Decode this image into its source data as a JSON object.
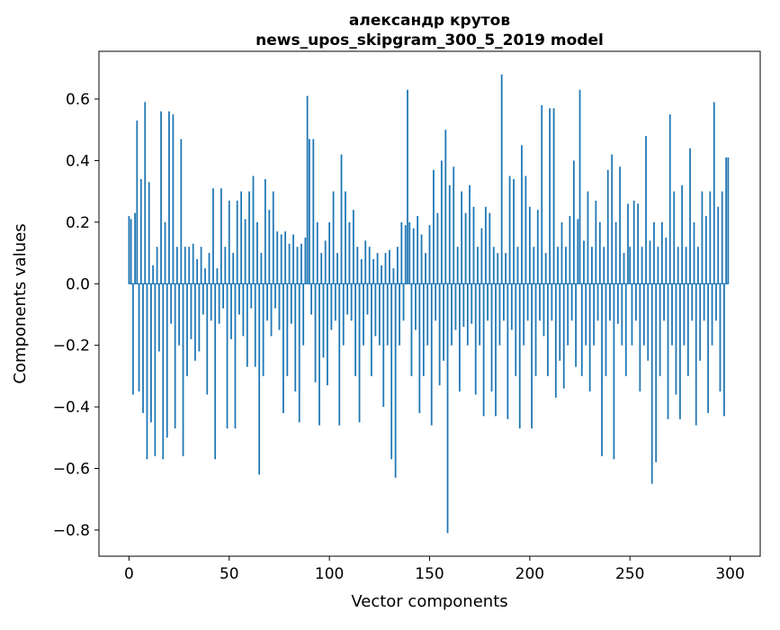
{
  "figure": {
    "background": "#ffffff"
  },
  "chart_data": {
    "type": "bar",
    "title_line1": "александр крутов",
    "title_line2": "news_upos_skipgram_300_5_2019 model",
    "title": "александр крутов\nnews_upos_skipgram_300_5_2019 model",
    "xlabel": "Vector components",
    "ylabel": "Components values",
    "bar_color": "#1f77b4",
    "n_components": 300,
    "xlim": [
      -15,
      315
    ],
    "ylim": [
      -0.885,
      0.755
    ],
    "x_ticks": [
      0,
      50,
      100,
      150,
      200,
      250,
      300
    ],
    "y_ticks": [
      -0.8,
      -0.6,
      -0.4,
      -0.2,
      0.0,
      0.2,
      0.4,
      0.6
    ],
    "grid": false,
    "legend": "none",
    "values": [
      0.22,
      0.21,
      -0.36,
      0.23,
      0.53,
      -0.35,
      0.34,
      -0.42,
      0.59,
      -0.57,
      0.33,
      -0.45,
      0.06,
      -0.56,
      0.12,
      -0.22,
      0.56,
      -0.57,
      0.2,
      -0.5,
      0.56,
      -0.13,
      0.55,
      -0.47,
      0.12,
      -0.2,
      0.47,
      -0.56,
      0.12,
      -0.3,
      0.12,
      -0.18,
      0.13,
      -0.25,
      0.08,
      -0.22,
      0.12,
      -0.1,
      0.05,
      -0.36,
      0.1,
      -0.12,
      0.31,
      -0.57,
      0.05,
      -0.13,
      0.31,
      -0.08,
      0.12,
      -0.47,
      0.27,
      -0.18,
      0.1,
      -0.47,
      0.27,
      -0.1,
      0.3,
      -0.17,
      0.21,
      -0.27,
      0.3,
      -0.08,
      0.35,
      -0.27,
      0.2,
      -0.62,
      0.1,
      -0.3,
      0.34,
      -0.12,
      0.24,
      -0.17,
      0.3,
      -0.08,
      0.17,
      -0.15,
      0.16,
      -0.42,
      0.17,
      -0.3,
      0.13,
      -0.13,
      0.16,
      -0.35,
      0.12,
      -0.45,
      0.13,
      -0.2,
      0.15,
      0.61,
      0.47,
      -0.1,
      0.47,
      -0.32,
      0.2,
      -0.46,
      0.1,
      -0.24,
      0.14,
      -0.33,
      0.2,
      -0.15,
      0.3,
      -0.12,
      0.1,
      -0.46,
      0.42,
      -0.2,
      0.3,
      -0.1,
      0.2,
      -0.12,
      0.24,
      -0.3,
      0.12,
      -0.45,
      0.08,
      -0.2,
      0.14,
      -0.1,
      0.12,
      -0.3,
      0.08,
      -0.17,
      0.1,
      -0.2,
      0.06,
      -0.4,
      0.1,
      -0.2,
      0.11,
      -0.57,
      0.05,
      -0.63,
      0.12,
      -0.2,
      0.2,
      -0.12,
      0.19,
      0.63,
      0.2,
      -0.3,
      0.18,
      -0.15,
      0.22,
      -0.42,
      0.16,
      -0.3,
      0.1,
      -0.2,
      0.19,
      -0.46,
      0.37,
      -0.12,
      0.23,
      -0.33,
      0.4,
      -0.25,
      0.5,
      -0.81,
      0.32,
      -0.2,
      0.38,
      -0.15,
      0.12,
      -0.35,
      0.3,
      -0.14,
      0.23,
      -0.2,
      0.32,
      -0.13,
      0.25,
      -0.36,
      0.12,
      -0.2,
      0.18,
      -0.43,
      0.25,
      -0.12,
      0.23,
      -0.35,
      0.12,
      -0.43,
      0.1,
      -0.2,
      0.68,
      -0.12,
      0.1,
      -0.44,
      0.35,
      -0.15,
      0.34,
      -0.3,
      0.12,
      -0.47,
      0.45,
      -0.2,
      0.35,
      -0.12,
      0.25,
      -0.47,
      0.12,
      -0.3,
      0.24,
      -0.12,
      0.58,
      -0.17,
      0.1,
      -0.3,
      0.57,
      -0.12,
      0.57,
      -0.37,
      0.12,
      -0.25,
      0.2,
      -0.34,
      0.12,
      -0.2,
      0.22,
      -0.12,
      0.4,
      -0.27,
      0.21,
      0.63,
      -0.3,
      0.14,
      -0.2,
      0.3,
      -0.35,
      0.12,
      -0.2,
      0.27,
      -0.12,
      0.2,
      -0.56,
      0.12,
      -0.3,
      0.37,
      -0.12,
      0.42,
      -0.57,
      0.2,
      -0.13,
      0.38,
      -0.2,
      0.1,
      -0.3,
      0.26,
      0.12,
      -0.2,
      0.27,
      -0.12,
      0.26,
      -0.35,
      0.12,
      -0.2,
      0.48,
      -0.25,
      0.14,
      -0.65,
      0.2,
      -0.58,
      0.12,
      -0.3,
      0.2,
      -0.12,
      0.15,
      -0.44,
      0.55,
      -0.2,
      0.3,
      -0.36,
      0.12,
      -0.44,
      0.32,
      -0.2,
      0.12,
      -0.3,
      0.44,
      -0.12,
      0.2,
      -0.46,
      0.12,
      -0.25,
      0.3,
      -0.12,
      0.22,
      -0.42,
      0.3,
      -0.2,
      0.59,
      -0.12,
      0.25,
      -0.35,
      0.3,
      -0.43,
      0.41,
      0.41
    ]
  }
}
